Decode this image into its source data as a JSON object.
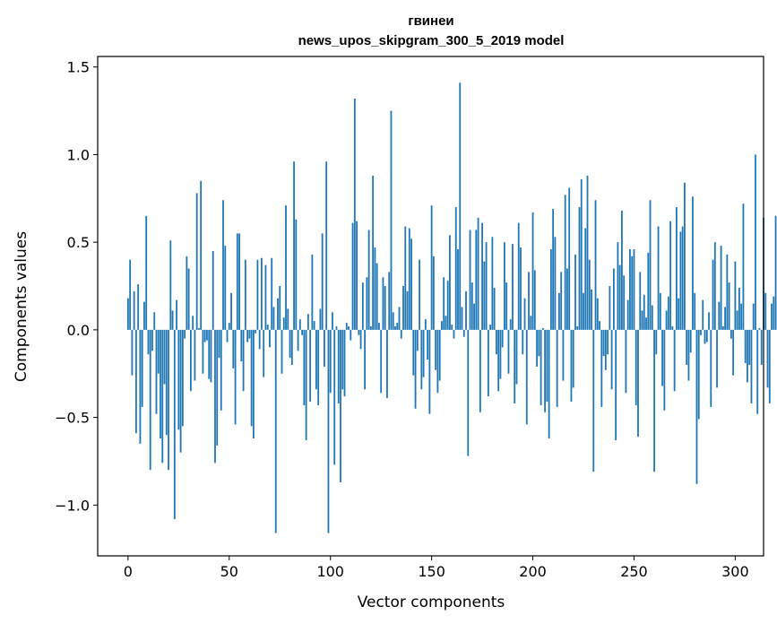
{
  "chart_data": {
    "type": "bar",
    "title": "гвинеи",
    "subtitle": "news_upos_skipgram_300_5_2019 model",
    "xlabel": "Vector components",
    "ylabel": "Components values",
    "xlim": [
      -15,
      314
    ],
    "ylim": [
      -1.29,
      1.56
    ],
    "xticks": [
      0,
      50,
      100,
      150,
      200,
      250,
      300
    ],
    "yticks": [
      -1.0,
      -0.5,
      0.0,
      0.5,
      1.0,
      1.5
    ],
    "xtick_labels": [
      "0",
      "50",
      "100",
      "150",
      "200",
      "250",
      "300"
    ],
    "ytick_labels": [
      "−1.0",
      "−0.5",
      "0.0",
      "0.5",
      "1.0",
      "1.5"
    ],
    "bar_color": "#1f77b4",
    "grid": false,
    "values": [
      0.18,
      0.4,
      -0.26,
      0.22,
      -0.59,
      0.26,
      -0.65,
      -0.44,
      0.16,
      0.65,
      -0.14,
      -0.8,
      -0.12,
      0.1,
      -0.48,
      -0.25,
      -0.62,
      -0.76,
      -0.31,
      -0.6,
      -0.8,
      0.51,
      0.11,
      -1.08,
      0.17,
      -0.57,
      -0.7,
      -0.55,
      -0.05,
      0.42,
      0.35,
      -0.35,
      0.08,
      -0.29,
      0.78,
      0.01,
      0.85,
      -0.25,
      -0.07,
      -0.06,
      -0.28,
      -0.3,
      0.45,
      -0.76,
      -0.66,
      -0.16,
      -0.46,
      0.74,
      0.48,
      -0.07,
      0.04,
      0.21,
      -0.22,
      -0.54,
      0.55,
      0.55,
      -0.18,
      -0.35,
      0.4,
      -0.07,
      -0.05,
      -0.55,
      -0.62,
      -0.02,
      0.4,
      -0.11,
      0.41,
      -0.27,
      0.37,
      0.03,
      -0.1,
      0.41,
      0.13,
      -1.16,
      0.18,
      0.25,
      -0.25,
      0.07,
      0.71,
      0.12,
      -0.16,
      -0.2,
      0.96,
      0.63,
      -0.12,
      0.06,
      -0.03,
      -0.43,
      -0.63,
      0.09,
      -0.41,
      0.43,
      0.05,
      -0.34,
      -0.43,
      0.12,
      0.55,
      -0.21,
      0.96,
      -1.16,
      -0.36,
      0.1,
      -0.77,
      0.02,
      -0.42,
      -0.87,
      -0.34,
      -0.38,
      0.04,
      0.02,
      -0.06,
      0.61,
      1.32,
      0.62,
      -0.03,
      -0.11,
      0.27,
      -0.34,
      0.3,
      0.57,
      0.02,
      0.88,
      0.47,
      0.38,
      0.04,
      -0.36,
      0.3,
      0.25,
      -0.39,
      0.33,
      1.25,
      0.1,
      0.02,
      0.04,
      0.13,
      -0.05,
      0.25,
      0.59,
      0.22,
      0.58,
      0.52,
      -0.26,
      -0.45,
      -0.12,
      0.4,
      -0.34,
      -0.27,
      0.06,
      -0.17,
      -0.48,
      0.71,
      0.42,
      -0.23,
      -0.36,
      -0.29,
      0.05,
      0.3,
      0.08,
      0.28,
      0.54,
      0.03,
      -0.05,
      0.7,
      0.46,
      1.41,
      0.13,
      -0.04,
      0.22,
      -0.72,
      0.57,
      0.27,
      0.15,
      0.57,
      0.64,
      -0.47,
      0.61,
      0.39,
      0.5,
      -0.38,
      0.03,
      0.53,
      0.24,
      -0.14,
      -0.35,
      -0.28,
      -0.1,
      0.5,
      0.27,
      -0.25,
      0.06,
      0.49,
      -0.42,
      -0.31,
      0.61,
      0.47,
      -0.14,
      0.18,
      -0.54,
      0.33,
      0.08,
      0.67,
      0.34,
      -0.21,
      -0.15,
      -0.43,
      0.01,
      -0.47,
      -0.41,
      -0.62,
      0.46,
      0.69,
      0.53,
      -0.44,
      0.21,
      0.33,
      -0.29,
      0.77,
      0.35,
      0.81,
      -0.41,
      -0.33,
      0.43,
      0.02,
      0.7,
      0.86,
      0.21,
      0.58,
      0.88,
      0.4,
      0.23,
      -0.81,
      0.74,
      0.18,
      0.05,
      -0.44,
      -0.15,
      -0.23,
      -0.14,
      0.25,
      -0.34,
      0.35,
      -0.63,
      0.5,
      0.37,
      0.68,
      0.31,
      -0.36,
      0.17,
      0.46,
      0.42,
      0.46,
      -0.43,
      -0.61,
      0.33,
      0.11,
      0.2,
      0.07,
      0.44,
      0.74,
      0.14,
      -0.81,
      -0.14,
      0.59,
      0.21,
      -0.32,
      -0.46,
      0.11,
      0.19,
      0.62,
      0.02,
      -0.35,
      0.7,
      0.18,
      0.56,
      0.59,
      0.84,
      -0.2,
      -0.29,
      -0.13,
      0.76,
      0.21,
      -0.88,
      -0.51,
      -0.03,
      0.17,
      -0.08,
      -0.07,
      0.1,
      -0.44,
      0.4,
      0.5,
      -0.33,
      0.16,
      0.48,
      0.02,
      0.13,
      0.43,
      0.27,
      -0.05,
      -0.26,
      0.39,
      0.11,
      0.24,
      0.15,
      0.72,
      -0.19,
      -0.3,
      -0.2,
      -0.42,
      0.15,
      1.0,
      -0.48,
      0.01,
      -0.2,
      0.64,
      0.21,
      -0.33,
      -0.42,
      0.15,
      0.19,
      0.65
    ]
  }
}
